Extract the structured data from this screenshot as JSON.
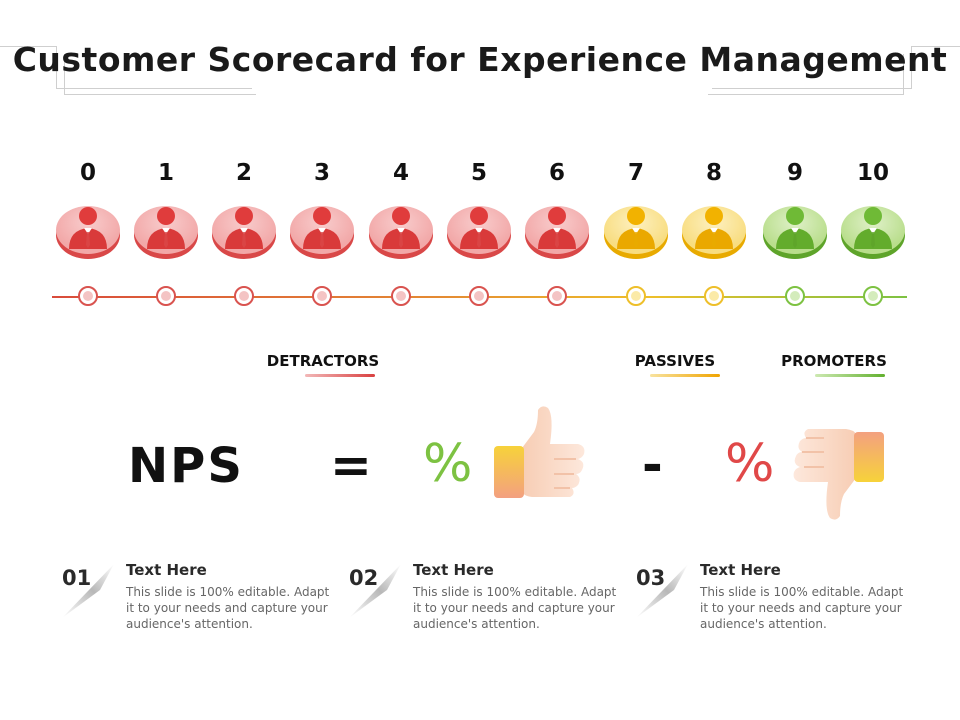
{
  "title": "Customer Scorecard for Experience Management",
  "scale": {
    "values": [
      "0",
      "1",
      "2",
      "3",
      "4",
      "5",
      "6",
      "7",
      "8",
      "9",
      "10"
    ],
    "groups": [
      "detractor",
      "detractor",
      "detractor",
      "detractor",
      "detractor",
      "detractor",
      "detractor",
      "passive",
      "passive",
      "promoter",
      "promoter"
    ]
  },
  "categories": {
    "detractors": "DETRACTORS",
    "passives": "PASSIVES",
    "promoters": "PROMOTERS"
  },
  "formula": {
    "nps": "NPS",
    "equals": "=",
    "promoter_pct": "%",
    "minus": "-",
    "detractor_pct": "%"
  },
  "steps": [
    {
      "number": "01",
      "title": "Text Here",
      "body": "This slide is 100% editable. Adapt it to your needs and capture your audience's attention."
    },
    {
      "number": "02",
      "title": "Text Here",
      "body": "This slide is 100% editable. Adapt it to your needs and capture your audience's attention."
    },
    {
      "number": "03",
      "title": "Text Here",
      "body": "This slide is 100% editable. Adapt it to your needs and capture your audience's attention."
    }
  ],
  "colors": {
    "detractor": "#e04848",
    "passive": "#f4b400",
    "promoter": "#7dc242",
    "thumb_up_cuff": "#f6c93a",
    "thumb_down_cuff": "#f6c93a"
  },
  "icons": {
    "avatar": "businessman-icon",
    "thumb_up": "thumbs-up-icon",
    "thumb_down": "thumbs-down-icon"
  }
}
